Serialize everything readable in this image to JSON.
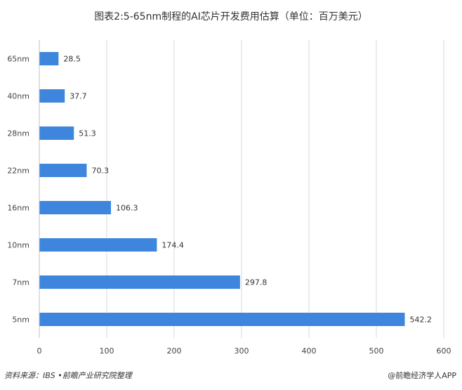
{
  "title": "图表2:5-65nm制程的AI芯片开发费用估算（单位：百万美元）",
  "source": "资料来源：IBS •前瞻产业研究院整理",
  "brand": "@前瞻经济学人APP",
  "colors": {
    "bar": "#3e85de",
    "grid": "#d9d9d9",
    "axis": "#bfbfbf"
  },
  "chart_data": {
    "type": "bar",
    "orientation": "horizontal",
    "categories": [
      "65nm",
      "40nm",
      "28nm",
      "22nm",
      "16nm",
      "10nm",
      "7nm",
      "5nm"
    ],
    "values": [
      28.5,
      37.7,
      51.3,
      70.3,
      106.3,
      174.4,
      297.8,
      542.2
    ],
    "value_labels": [
      "28.5",
      "37.7",
      "51.3",
      "70.3",
      "106.3",
      "174.4",
      "297.8",
      "542.2"
    ],
    "xlim": [
      0,
      600
    ],
    "xticks": [
      0,
      100,
      200,
      300,
      400,
      500,
      600
    ],
    "grid": "vertical",
    "legend": "none"
  }
}
